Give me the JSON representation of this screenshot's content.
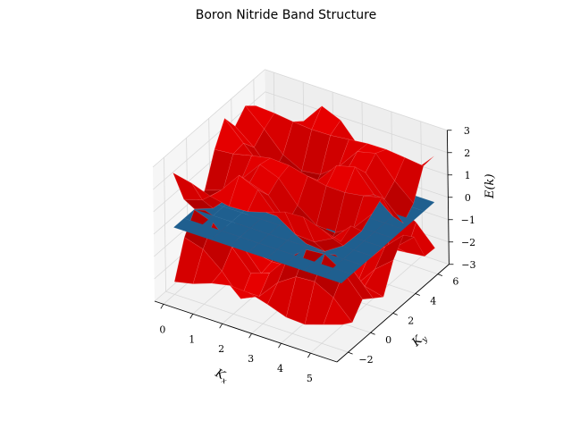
{
  "chart_data": {
    "type": "surface3d",
    "title": "Boron Nitride Band Structure",
    "xlabel": "K_x",
    "ylabel": "K_y",
    "zlabel": "E(k)",
    "xlim": [
      -0.3,
      5.9
    ],
    "ylim": [
      -3.0,
      7.0
    ],
    "zlim": [
      -3.0,
      3.0
    ],
    "xticks": [
      0,
      1,
      2,
      3,
      4,
      5
    ],
    "yticks": [
      -2,
      0,
      2,
      4,
      6
    ],
    "zticks": [
      3,
      2,
      1,
      0,
      -1,
      -2,
      -3
    ],
    "grid": true,
    "surfaces": [
      {
        "kind": "conduction-band",
        "color": "#ff0000",
        "edge_color": "#ff8080",
        "peak_points": [
          {
            "x": 0,
            "y": -2,
            "z": 3.3
          },
          {
            "x": 5.5,
            "y": 6.3,
            "z": -3.3
          }
        ]
      },
      {
        "kind": "valence-band",
        "color": "#ff0000",
        "edge_color": "#ff8080"
      },
      {
        "kind": "flat-band",
        "color": "#1f5f8f",
        "z": 0
      }
    ]
  }
}
